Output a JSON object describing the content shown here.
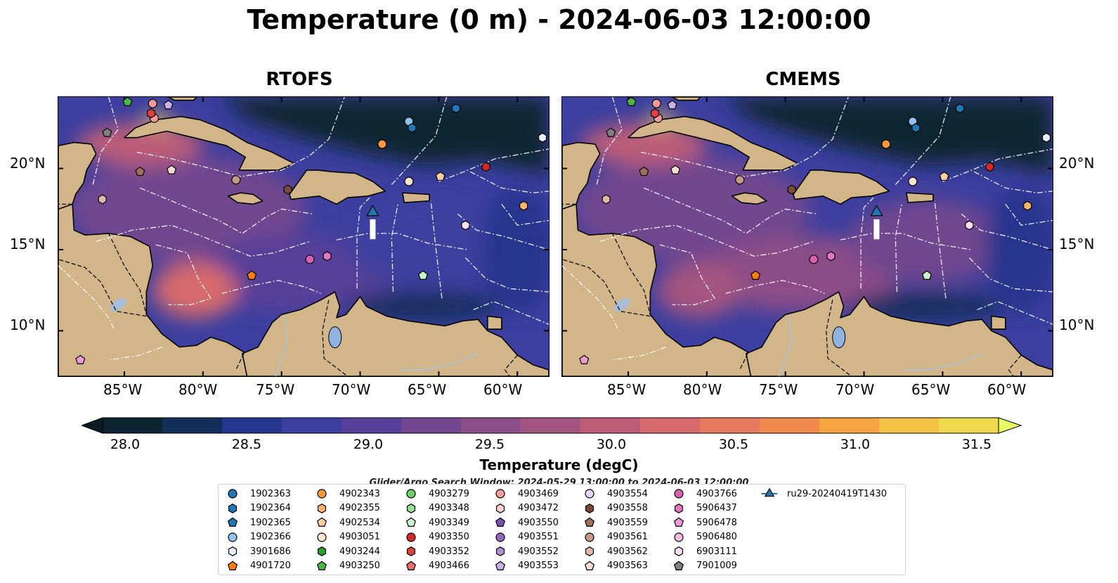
{
  "title": "Temperature (0 m) - 2024-06-03 12:00:00",
  "panels": [
    {
      "title": "RTOFS"
    },
    {
      "title": "CMEMS"
    }
  ],
  "lat_labels": [
    "20°N",
    "15°N",
    "10°N"
  ],
  "lon_labels": [
    "85°W",
    "80°W",
    "75°W",
    "70°W",
    "65°W",
    "60°W"
  ],
  "colorbar": {
    "label": "Temperature (degC)",
    "ticks": [
      "28.0",
      "28.5",
      "29.0",
      "29.5",
      "30.0",
      "30.5",
      "31.0",
      "31.5"
    ],
    "colors": [
      "#0b2530",
      "#122f5c",
      "#26368e",
      "#3c3f9f",
      "#564099",
      "#71468f",
      "#8c4e87",
      "#a45480",
      "#bd5d78",
      "#d76a6c",
      "#e7795e",
      "#f18a4f",
      "#f7a443",
      "#f4c346",
      "#f0d94d"
    ],
    "over_color": "#e8f964",
    "under_color": "#0a1d24"
  },
  "search_window": "Glider/Argo Search Window: 2024-05-29 13:00:00 to 2024-06-03 12:00:00",
  "map_colors": {
    "land": "#d2b68a",
    "ocean_deep": "#3c3f9f",
    "ocean_mid": "#71468f",
    "north": "#0b2530",
    "lake": "#8fb3e0",
    "river": "#a9c3d9"
  },
  "legend": [
    {
      "label": "1902363",
      "marker": "circle",
      "color": "#1f77b4"
    },
    {
      "label": "1902364",
      "marker": "hexagon",
      "color": "#1f77b4"
    },
    {
      "label": "1902365",
      "marker": "pentagon",
      "color": "#1f77b4"
    },
    {
      "label": "1902366",
      "marker": "circle",
      "color": "#8fc3ec"
    },
    {
      "label": "3901686",
      "marker": "hexagon",
      "color": "#e6f2fb"
    },
    {
      "label": "4901720",
      "marker": "pentagon",
      "color": "#ff7f0e"
    },
    {
      "label": "4902343",
      "marker": "circle",
      "color": "#ff983a"
    },
    {
      "label": "4902355",
      "marker": "hexagon",
      "color": "#ffb36b"
    },
    {
      "label": "4902534",
      "marker": "pentagon",
      "color": "#ffcfa3"
    },
    {
      "label": "4903051",
      "marker": "circle",
      "color": "#ffe6d0"
    },
    {
      "label": "4903244",
      "marker": "hexagon",
      "color": "#2ca02c"
    },
    {
      "label": "4903250",
      "marker": "pentagon",
      "color": "#49b845"
    },
    {
      "label": "4903279",
      "marker": "circle",
      "color": "#6cd06c"
    },
    {
      "label": "4903348",
      "marker": "hexagon",
      "color": "#98e098"
    },
    {
      "label": "4903349",
      "marker": "pentagon",
      "color": "#ccf5cc"
    },
    {
      "label": "4903350",
      "marker": "circle",
      "color": "#d62728"
    },
    {
      "label": "4903352",
      "marker": "hexagon",
      "color": "#e0403f"
    },
    {
      "label": "4903466",
      "marker": "pentagon",
      "color": "#ed6b6b"
    },
    {
      "label": "4903469",
      "marker": "circle",
      "color": "#f39a9a"
    },
    {
      "label": "4903472",
      "marker": "hexagon",
      "color": "#fbd0d0"
    },
    {
      "label": "4903550",
      "marker": "pentagon",
      "color": "#7b4fb0"
    },
    {
      "label": "4903551",
      "marker": "circle",
      "color": "#9467bd"
    },
    {
      "label": "4903552",
      "marker": "hexagon",
      "color": "#ae8fd6"
    },
    {
      "label": "4903553",
      "marker": "pentagon",
      "color": "#c9b1e8"
    },
    {
      "label": "4903554",
      "marker": "circle",
      "color": "#e4d6f7"
    },
    {
      "label": "4903558",
      "marker": "hexagon",
      "color": "#7a4a36"
    },
    {
      "label": "4903559",
      "marker": "pentagon",
      "color": "#a0705c"
    },
    {
      "label": "4903561",
      "marker": "circle",
      "color": "#c39a88"
    },
    {
      "label": "4903562",
      "marker": "hexagon",
      "color": "#deb8a8"
    },
    {
      "label": "4903563",
      "marker": "pentagon",
      "color": "#f4dcd3"
    },
    {
      "label": "4903766",
      "marker": "circle",
      "color": "#d95fb3"
    },
    {
      "label": "5906437",
      "marker": "hexagon",
      "color": "#e377c2"
    },
    {
      "label": "5906478",
      "marker": "pentagon",
      "color": "#f09ad6"
    },
    {
      "label": "5906480",
      "marker": "circle",
      "color": "#f6b9e3"
    },
    {
      "label": "6903111",
      "marker": "hexagon",
      "color": "#fde0f3"
    },
    {
      "label": "7901009",
      "marker": "pentagon",
      "color": "#7f7f7f"
    },
    {
      "label": "ru29-20240419T1430",
      "marker": "triangle-line",
      "color": "#1f77b4"
    }
  ],
  "floats": [
    {
      "lon": -84.8,
      "lat": 24.1,
      "marker": "pentagon",
      "color": "#49b845"
    },
    {
      "lon": -83.2,
      "lat": 24.0,
      "marker": "circle",
      "color": "#f39a9a"
    },
    {
      "lon": -82.2,
      "lat": 23.9,
      "marker": "pentagon",
      "color": "#c9b1e8"
    },
    {
      "lon": -83.1,
      "lat": 23.1,
      "marker": "circle",
      "color": "#f39a9a"
    },
    {
      "lon": -83.3,
      "lat": 23.4,
      "marker": "hexagon",
      "color": "#e0403f"
    },
    {
      "lon": -86.1,
      "lat": 22.2,
      "marker": "pentagon",
      "color": "#7f7f7f"
    },
    {
      "lon": -84.0,
      "lat": 19.8,
      "marker": "pentagon",
      "color": "#a0705c"
    },
    {
      "lon": -82.0,
      "lat": 19.9,
      "marker": "pentagon",
      "color": "#f4dcd3"
    },
    {
      "lon": -77.9,
      "lat": 19.3,
      "marker": "circle",
      "color": "#c39a88"
    },
    {
      "lon": -86.4,
      "lat": 18.1,
      "marker": "hexagon",
      "color": "#deb8a8"
    },
    {
      "lon": -74.6,
      "lat": 18.7,
      "marker": "hexagon",
      "color": "#7a4a36"
    },
    {
      "lon": -66.9,
      "lat": 22.9,
      "marker": "circle",
      "color": "#8fc3ec"
    },
    {
      "lon": -66.7,
      "lat": 22.5,
      "marker": "hexagon",
      "color": "#1f77b4"
    },
    {
      "lon": -63.9,
      "lat": 23.7,
      "marker": "hexagon",
      "color": "#1f77b4"
    },
    {
      "lon": -68.6,
      "lat": 21.5,
      "marker": "circle",
      "color": "#ff983a"
    },
    {
      "lon": -58.4,
      "lat": 21.9,
      "marker": "hexagon",
      "color": "#e6f2fb"
    },
    {
      "lon": -62.0,
      "lat": 20.1,
      "marker": "hexagon",
      "color": "#d62728"
    },
    {
      "lon": -66.9,
      "lat": 19.2,
      "marker": "circle",
      "color": "#ffe6d0"
    },
    {
      "lon": -64.9,
      "lat": 19.5,
      "marker": "pentagon",
      "color": "#ffcfa3"
    },
    {
      "lon": -59.6,
      "lat": 17.7,
      "marker": "hexagon",
      "color": "#ffb36b"
    },
    {
      "lon": -63.3,
      "lat": 16.5,
      "marker": "hexagon",
      "color": "#fde0f3"
    },
    {
      "lon": -73.2,
      "lat": 14.4,
      "marker": "circle",
      "color": "#d95fb3"
    },
    {
      "lon": -72.1,
      "lat": 14.6,
      "marker": "hexagon",
      "color": "#e377c2"
    },
    {
      "lon": -76.9,
      "lat": 13.4,
      "marker": "pentagon",
      "color": "#ff7f0e"
    },
    {
      "lon": -66.0,
      "lat": 13.4,
      "marker": "pentagon",
      "color": "#ccf5cc"
    },
    {
      "lon": -87.8,
      "lat": 8.2,
      "marker": "pentagon",
      "color": "#f09ad6"
    }
  ],
  "glider": {
    "lon": -69.2,
    "lat": 17.3,
    "track_end_lat": 15.9
  }
}
